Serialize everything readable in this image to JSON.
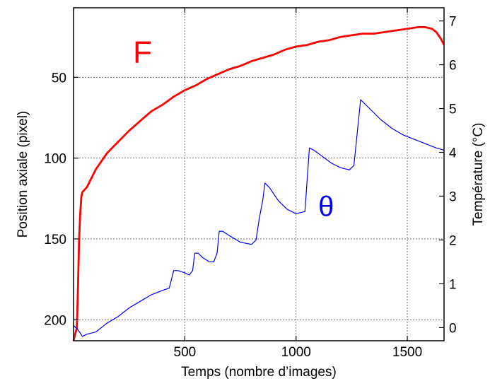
{
  "chart_data": {
    "type": "line",
    "xlabel": "Temps (nombre d’images)",
    "ylabel_left": "Position axiale (pixel)",
    "ylabel_right": "Température (°C)",
    "xlim": [
      0,
      1665
    ],
    "ylim_left": [
      213,
      7
    ],
    "ylim_right": [
      -0.3,
      7.3
    ],
    "x_ticks": [
      500,
      1000,
      1500
    ],
    "y_left_ticks": [
      50,
      100,
      150,
      200
    ],
    "y_right_ticks": [
      0,
      1,
      2,
      3,
      4,
      5,
      6,
      7
    ],
    "grid": true,
    "series": [
      {
        "name": "F",
        "axis": "left",
        "color": "#ff0000",
        "x": [
          0,
          15,
          20,
          25,
          30,
          35,
          40,
          60,
          100,
          150,
          200,
          250,
          300,
          350,
          400,
          450,
          500,
          550,
          600,
          650,
          700,
          750,
          800,
          850,
          900,
          950,
          1000,
          1050,
          1100,
          1150,
          1200,
          1250,
          1300,
          1350,
          1400,
          1450,
          1500,
          1550,
          1580,
          1610,
          1630,
          1650,
          1665
        ],
        "y": [
          213,
          205,
          180,
          150,
          135,
          124,
          121,
          118,
          107,
          97,
          90,
          83,
          77,
          71,
          67,
          62,
          58,
          55,
          51,
          48,
          45,
          43,
          40,
          38,
          36,
          33,
          31,
          30,
          28,
          27,
          25,
          24,
          23,
          23,
          22,
          21,
          20,
          19,
          19,
          20,
          22,
          26,
          30
        ]
      },
      {
        "name": "θ",
        "axis": "right",
        "color": "#0000ff",
        "x": [
          0,
          20,
          40,
          60,
          100,
          150,
          200,
          250,
          300,
          350,
          400,
          430,
          440,
          450,
          470,
          500,
          520,
          535,
          545,
          560,
          580,
          610,
          630,
          645,
          655,
          670,
          700,
          750,
          800,
          820,
          835,
          850,
          860,
          880,
          920,
          960,
          1000,
          1040,
          1050,
          1060,
          1080,
          1120,
          1160,
          1200,
          1240,
          1260,
          1270,
          1290,
          1330,
          1380,
          1430,
          1480,
          1530,
          1580,
          1630,
          1665
        ],
        "y": [
          0.05,
          -0.05,
          -0.2,
          -0.15,
          -0.1,
          0.1,
          0.25,
          0.45,
          0.6,
          0.75,
          0.85,
          0.9,
          1.1,
          1.3,
          1.3,
          1.25,
          1.2,
          1.3,
          1.7,
          1.7,
          1.6,
          1.5,
          1.5,
          1.7,
          2.2,
          2.2,
          2.1,
          1.95,
          1.9,
          2.0,
          2.5,
          2.9,
          3.3,
          3.2,
          2.9,
          2.7,
          2.6,
          2.65,
          3.4,
          4.1,
          4.05,
          3.9,
          3.75,
          3.65,
          3.6,
          3.7,
          4.2,
          5.2,
          5.0,
          4.75,
          4.55,
          4.4,
          4.3,
          4.2,
          4.1,
          4.05
        ]
      }
    ]
  }
}
